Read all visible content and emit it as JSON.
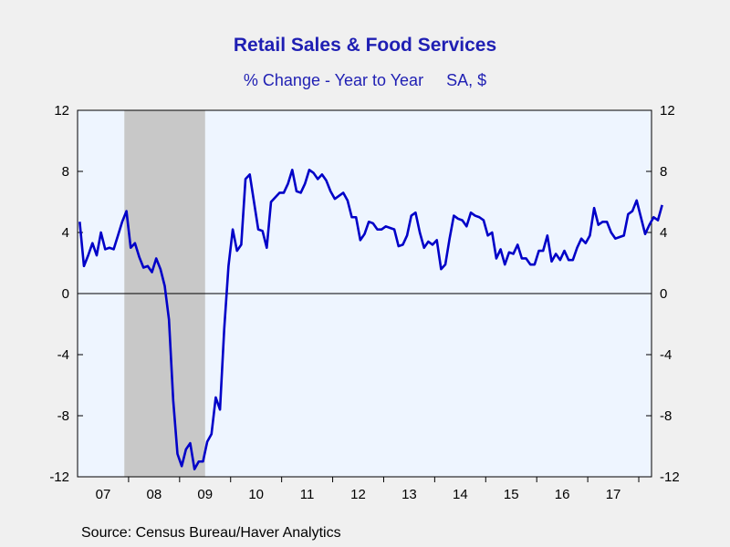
{
  "header": {
    "title": "Retail Sales & Food Services",
    "subtitle": "% Change - Year to Year     SA, $"
  },
  "footer": {
    "source": "Source:  Census Bureau/Haver Analytics"
  },
  "colors": {
    "line": "#0000c8",
    "plot_bg": "#eef5ff",
    "recession": "#c8c8c8",
    "title": "#1f1fb3"
  },
  "chart_data": {
    "type": "line",
    "title": "Retail Sales & Food Services",
    "subtitle": "% Change - Year to Year     SA, $",
    "frequency": "monthly",
    "start": "2007-01",
    "end": "2018-03",
    "x_tick_labels": [
      "07",
      "08",
      "09",
      "10",
      "11",
      "12",
      "13",
      "14",
      "15",
      "16",
      "17"
    ],
    "ylim": [
      -12,
      12
    ],
    "y_ticks": [
      -12,
      -8,
      -4,
      0,
      4,
      8,
      12
    ],
    "y_axes": "left and right",
    "zero_line": true,
    "grid": false,
    "legend": "none",
    "recession_shading": {
      "start": "2007-12",
      "end": "2009-06"
    },
    "series": [
      {
        "values": [
          4.7,
          1.8,
          2.5,
          3.3,
          2.5,
          4.0,
          2.9,
          3.0,
          2.9,
          3.8,
          4.7,
          5.4,
          3.0,
          3.3,
          2.4,
          1.7,
          1.8,
          1.4,
          2.3,
          1.6,
          0.5,
          -1.7,
          -7.0,
          -10.5,
          -11.3,
          -10.2,
          -9.8,
          -11.5,
          -11.0,
          -11.0,
          -9.7,
          -9.2,
          -6.8,
          -7.6,
          -2.3,
          1.8,
          4.2,
          2.8,
          3.2,
          7.5,
          7.8,
          6.0,
          4.2,
          4.1,
          3.0,
          6.0,
          6.3,
          6.6,
          6.6,
          7.2,
          8.1,
          6.7,
          6.6,
          7.2,
          8.1,
          7.9,
          7.5,
          7.8,
          7.4,
          6.7,
          6.2,
          6.4,
          6.6,
          6.1,
          5.0,
          5.0,
          3.5,
          3.9,
          4.7,
          4.6,
          4.2,
          4.2,
          4.4,
          4.3,
          4.2,
          3.1,
          3.2,
          3.8,
          5.1,
          5.3,
          4.0,
          3.0,
          3.4,
          3.2,
          3.5,
          1.6,
          1.9,
          3.6,
          5.1,
          4.9,
          4.8,
          4.4,
          5.3,
          5.1,
          5.0,
          4.8,
          3.8,
          4.0,
          2.3,
          2.9,
          1.9,
          2.7,
          2.6,
          3.2,
          2.3,
          2.3,
          1.9,
          1.9,
          2.8,
          2.8,
          3.8,
          2.1,
          2.6,
          2.2,
          2.8,
          2.2,
          2.2,
          3.0,
          3.6,
          3.3,
          3.8,
          5.6,
          4.5,
          4.7,
          4.7,
          4.0,
          3.6,
          3.7,
          3.8,
          5.2,
          5.4,
          6.1,
          5.0,
          3.9,
          4.5,
          5.0,
          4.8,
          5.8
        ]
      }
    ]
  }
}
